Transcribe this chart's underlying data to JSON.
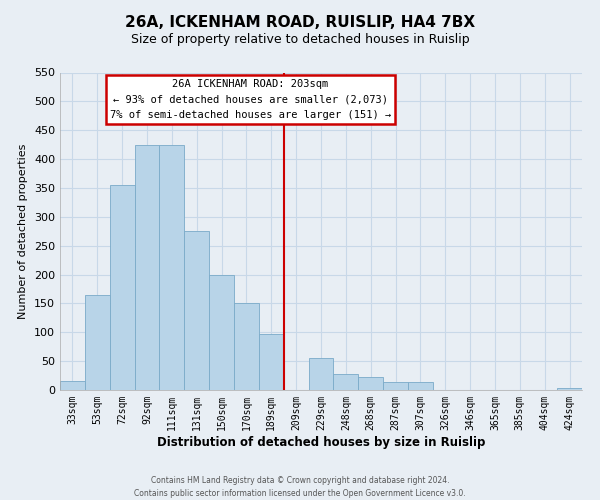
{
  "title": "26A, ICKENHAM ROAD, RUISLIP, HA4 7BX",
  "subtitle": "Size of property relative to detached houses in Ruislip",
  "xlabel": "Distribution of detached houses by size in Ruislip",
  "ylabel": "Number of detached properties",
  "bar_labels": [
    "33sqm",
    "53sqm",
    "72sqm",
    "92sqm",
    "111sqm",
    "131sqm",
    "150sqm",
    "170sqm",
    "189sqm",
    "209sqm",
    "229sqm",
    "248sqm",
    "268sqm",
    "287sqm",
    "307sqm",
    "326sqm",
    "346sqm",
    "365sqm",
    "385sqm",
    "404sqm",
    "424sqm"
  ],
  "bar_values": [
    15,
    165,
    355,
    425,
    425,
    275,
    200,
    150,
    97,
    0,
    55,
    28,
    22,
    13,
    14,
    0,
    0,
    0,
    0,
    0,
    3
  ],
  "bar_color": "#b8d4e8",
  "bar_edge_color": "#7aaac8",
  "vline_x_idx": 9,
  "vline_color": "#cc0000",
  "ylim": [
    0,
    550
  ],
  "yticks": [
    0,
    50,
    100,
    150,
    200,
    250,
    300,
    350,
    400,
    450,
    500,
    550
  ],
  "annotation_title": "26A ICKENHAM ROAD: 203sqm",
  "annotation_line1": "← 93% of detached houses are smaller (2,073)",
  "annotation_line2": "7% of semi-detached houses are larger (151) →",
  "footer1": "Contains HM Land Registry data © Crown copyright and database right 2024.",
  "footer2": "Contains public sector information licensed under the Open Government Licence v3.0.",
  "bg_color": "#e8eef4",
  "plot_bg_color": "#e8eef4",
  "grid_color": "#c8d8e8"
}
